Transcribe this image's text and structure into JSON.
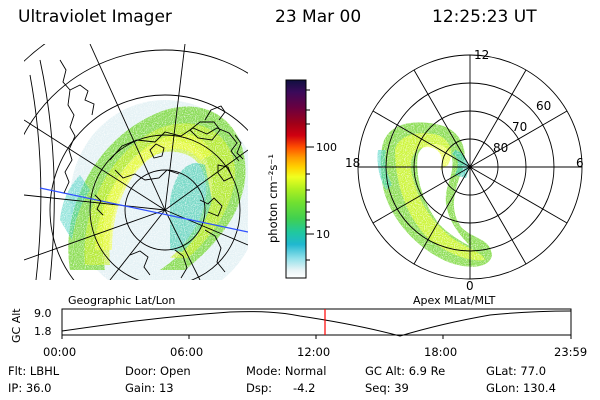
{
  "header": {
    "title": "Ultraviolet Imager",
    "date": "23 Mar 00",
    "time": "12:25:23 UT"
  },
  "colorbar": {
    "label": "photon cm⁻²s⁻¹",
    "ticks": [
      "100",
      "10"
    ],
    "colors": [
      "#101040",
      "#3a0a5a",
      "#6a0040",
      "#a00018",
      "#d00010",
      "#ff5000",
      "#ff9a00",
      "#ffd200",
      "#f0ff20",
      "#b0f020",
      "#70e030",
      "#40d050",
      "#20c8a0",
      "#20b8d0",
      "#90e0ea",
      "#e8f4f6",
      "#ffffff"
    ]
  },
  "left_map": {
    "caption": "Geographic Lat/Lon"
  },
  "right_map": {
    "caption": "Apex MLat/MLT",
    "mlt_labels": {
      "top": "12",
      "left": "18",
      "right": "6",
      "bottom": "0"
    },
    "lat_labels": [
      "60",
      "70",
      "80"
    ]
  },
  "timeline": {
    "ylabel": "GC Alt",
    "yticks": [
      "9.0",
      "1.8"
    ],
    "xticks": [
      "00:00",
      "06:00",
      "12:00",
      "18:00",
      "23:59"
    ],
    "current_marker_color": "#ff0000"
  },
  "info": {
    "row1": {
      "flt": "Flt: LBHL",
      "door": "Door: Open",
      "mode": "Mode: Normal",
      "gcalt": "GC Alt: 6.9 Re",
      "glat": "GLat:  77.0"
    },
    "row2": {
      "ip": "IP: 36.0",
      "gain": "Gain: 13",
      "dsp_label": "Dsp:",
      "dsp_value": "-4.2",
      "seq": "Seq: 39",
      "glon": "GLon: 130.4"
    }
  }
}
